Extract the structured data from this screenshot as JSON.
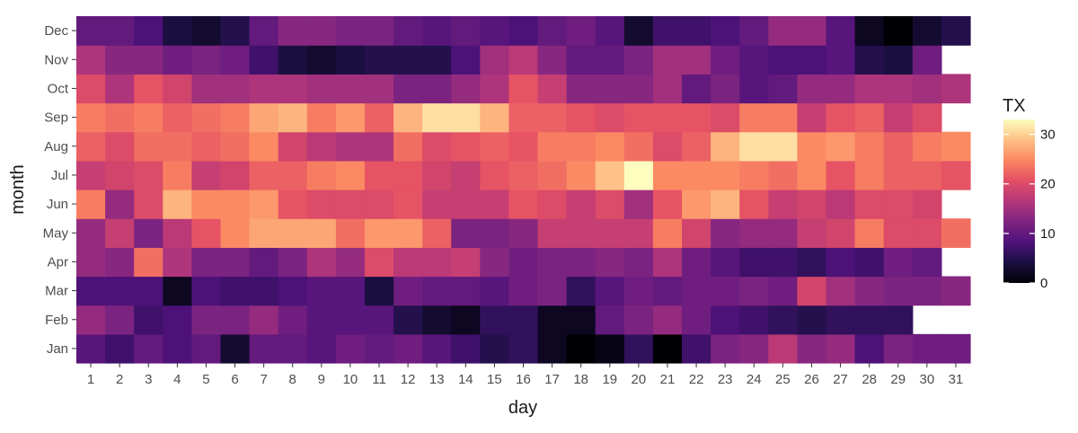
{
  "chart_data": {
    "type": "heatmap",
    "title": "",
    "xlabel": "day",
    "ylabel": "month",
    "x": [
      1,
      2,
      3,
      4,
      5,
      6,
      7,
      8,
      9,
      10,
      11,
      12,
      13,
      14,
      15,
      16,
      17,
      18,
      19,
      20,
      21,
      22,
      23,
      24,
      25,
      26,
      27,
      28,
      29,
      30,
      31
    ],
    "y": [
      "Jan",
      "Feb",
      "Mar",
      "Apr",
      "May",
      "Jun",
      "Jul",
      "Aug",
      "Sep",
      "Oct",
      "Nov",
      "Dec"
    ],
    "value_label": "TX",
    "color_scale": "magma",
    "color_range": [
      0,
      33
    ],
    "legend_ticks": [
      0,
      10,
      20,
      30
    ],
    "legend_position": "right",
    "grid": false,
    "values": [
      [
        9,
        7,
        10,
        8,
        10,
        3,
        10,
        10,
        9,
        11,
        10,
        11,
        9,
        7,
        5,
        6,
        2,
        0,
        1,
        6,
        0,
        7,
        12,
        13,
        17,
        13,
        14,
        8,
        12,
        11,
        11
      ],
      [
        14,
        12,
        7,
        8,
        12,
        12,
        14,
        11,
        9,
        9,
        9,
        5,
        3,
        2,
        6,
        6,
        2,
        2,
        10,
        12,
        14,
        11,
        8,
        7,
        6,
        5,
        6,
        6,
        6,
        null,
        null
      ],
      [
        8,
        8,
        8,
        2,
        8,
        7,
        7,
        8,
        9,
        9,
        4,
        11,
        10,
        10,
        9,
        11,
        12,
        6,
        9,
        11,
        10,
        11,
        11,
        12,
        11,
        19,
        15,
        13,
        12,
        12,
        13
      ],
      [
        14,
        13,
        23,
        16,
        12,
        12,
        10,
        12,
        16,
        14,
        20,
        17,
        17,
        18,
        13,
        11,
        12,
        12,
        13,
        12,
        16,
        11,
        9,
        7,
        7,
        6,
        8,
        7,
        11,
        10,
        null
      ],
      [
        14,
        18,
        12,
        17,
        21,
        25,
        27,
        27,
        27,
        23,
        26,
        26,
        22,
        12,
        12,
        13,
        18,
        18,
        18,
        18,
        24,
        19,
        13,
        14,
        14,
        18,
        19,
        24,
        20,
        20,
        23
      ],
      [
        24,
        14,
        20,
        28,
        25,
        25,
        26,
        21,
        20,
        20,
        20,
        21,
        18,
        18,
        18,
        21,
        20,
        18,
        20,
        15,
        21,
        26,
        28,
        21,
        18,
        19,
        17,
        20,
        20,
        19,
        null
      ],
      [
        18,
        19,
        20,
        24,
        18,
        19,
        22,
        22,
        24,
        25,
        21,
        21,
        19,
        18,
        21,
        22,
        23,
        25,
        29,
        33,
        25,
        25,
        25,
        24,
        23,
        25,
        21,
        24,
        22,
        22,
        21
      ],
      [
        22,
        20,
        23,
        23,
        22,
        23,
        25,
        19,
        17,
        16,
        16,
        23,
        20,
        21,
        22,
        21,
        24,
        24,
        25,
        23,
        20,
        22,
        28,
        31,
        31,
        25,
        26,
        24,
        22,
        24,
        25
      ],
      [
        24,
        23,
        24,
        22,
        23,
        24,
        27,
        28,
        24,
        26,
        22,
        28,
        31,
        31,
        28,
        22,
        22,
        21,
        20,
        21,
        21,
        21,
        20,
        24,
        24,
        18,
        21,
        22,
        18,
        20,
        null
      ],
      [
        20,
        16,
        21,
        19,
        15,
        15,
        16,
        16,
        15,
        15,
        15,
        12,
        12,
        14,
        16,
        21,
        18,
        13,
        13,
        13,
        15,
        10,
        12,
        9,
        10,
        14,
        14,
        16,
        16,
        15,
        16
      ],
      [
        16,
        13,
        13,
        11,
        12,
        11,
        7,
        4,
        3,
        4,
        5,
        5,
        5,
        8,
        15,
        17,
        13,
        10,
        10,
        12,
        15,
        15,
        11,
        9,
        8,
        8,
        9,
        5,
        4,
        11,
        null
      ],
      [
        10,
        10,
        8,
        4,
        3,
        5,
        10,
        13,
        13,
        12,
        12,
        10,
        9,
        10,
        9,
        8,
        10,
        11,
        9,
        3,
        7,
        7,
        8,
        10,
        14,
        14,
        9,
        2,
        0,
        3,
        5
      ]
    ]
  }
}
